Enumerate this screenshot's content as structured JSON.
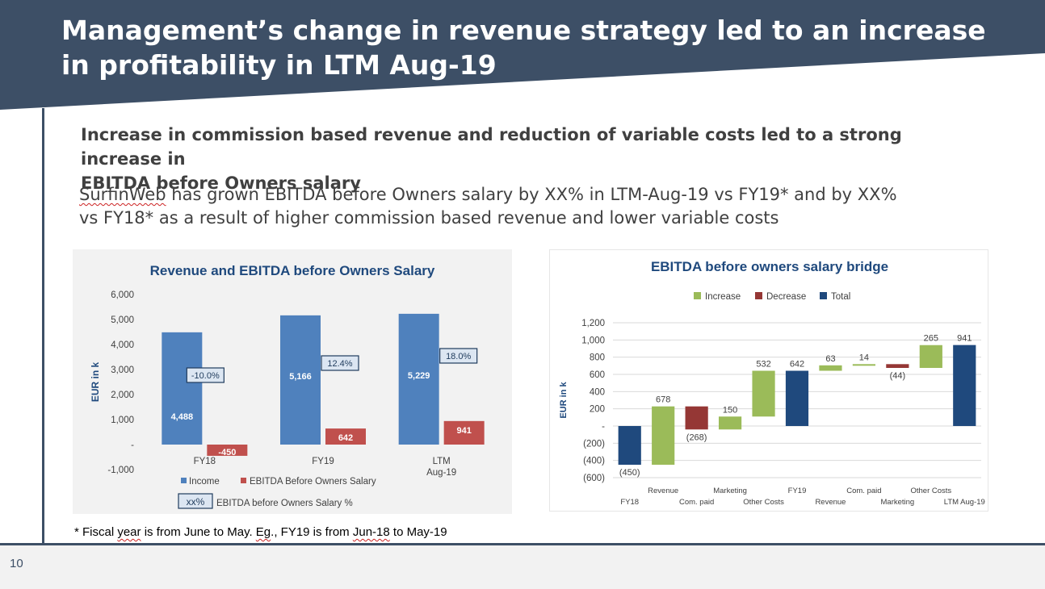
{
  "slide": {
    "title_line1": "Management’s change in revenue strategy led to an increase",
    "title_line2": "in profitability in LTM Aug-19",
    "subtitle_line1": "Increase in commission based revenue and reduction of variable costs led to a strong increase in",
    "subtitle_line2": "EBITDA before Owners salary",
    "body_word": "SurfinWeb",
    "body_line1_rest": " has grown EBITDA before Owners salary by XX% in LTM-Aug-19 vs FY19* and by XX%",
    "body_line2": "vs FY18* as a result of higher commission based revenue and lower variable costs",
    "footnote_pre": "* Fiscal ",
    "footnote_year": "year",
    "footnote_mid1": " is from June to May. ",
    "footnote_eg": "Eg",
    "footnote_mid2": "., FY19 is from ",
    "footnote_jun": "Jun-18",
    "footnote_post": " to May-19",
    "page_number": "10",
    "colors": {
      "navy": "#3d4f66",
      "text": "#404040"
    }
  },
  "chart_data": [
    {
      "type": "bar",
      "title": "Revenue and EBITDA before Owners Salary",
      "ylabel": "EUR in k",
      "ylim": [
        -1000,
        6000
      ],
      "yticks": [
        "6,000",
        "5,000",
        "4,000",
        "3,000",
        "2,000",
        "1,000",
        "-",
        "-1,000"
      ],
      "categories": [
        "FY18",
        "FY19",
        "LTM\nAug-19"
      ],
      "series": [
        {
          "name": "Income",
          "color": "#4f81bd",
          "values": [
            4488,
            5166,
            5229
          ],
          "labels": [
            "4,488",
            "5,166",
            "5,229"
          ]
        },
        {
          "name": "EBITDA Before Owners Salary",
          "color": "#c0504d",
          "values": [
            -450,
            642,
            941
          ],
          "labels": [
            "-450",
            "642",
            "941"
          ]
        }
      ],
      "margin_labels": [
        "-10.0%",
        "12.4%",
        "18.0%"
      ],
      "margin_legend_symbol": "xx%",
      "margin_legend_text": "EBITDA before Owners Salary %",
      "grid": false,
      "legend": "bottom"
    },
    {
      "type": "bar",
      "subtype": "waterfall",
      "title": "EBITDA before owners salary bridge",
      "ylabel": "EUR in k",
      "ylim": [
        -600,
        1200
      ],
      "yticks": [
        "1,200",
        "1,000",
        "800",
        "600",
        "400",
        "200",
        "-",
        "(200)",
        "(400)",
        "(600)"
      ],
      "legend_items": [
        {
          "name": "Increase",
          "color": "#9bbb59"
        },
        {
          "name": "Decrease",
          "color": "#953735"
        },
        {
          "name": "Total",
          "color": "#1f497d"
        }
      ],
      "categories": [
        "FY18",
        "Revenue",
        "Com. paid",
        "Marketing",
        "Other Costs",
        "FY19",
        "Revenue",
        "Com. paid",
        "Marketing",
        "Other Costs",
        "LTM Aug-19"
      ],
      "steps": [
        {
          "kind": "total",
          "value": -450,
          "label": "(450)"
        },
        {
          "kind": "increase",
          "value": 678,
          "label": "678"
        },
        {
          "kind": "decrease",
          "value": -268,
          "label": "(268)"
        },
        {
          "kind": "increase",
          "value": 150,
          "label": "150"
        },
        {
          "kind": "increase",
          "value": 532,
          "label": "532"
        },
        {
          "kind": "total",
          "value": 642,
          "label": "642"
        },
        {
          "kind": "increase",
          "value": 63,
          "label": "63"
        },
        {
          "kind": "increase",
          "value": 14,
          "label": "14"
        },
        {
          "kind": "decrease",
          "value": -44,
          "label": "(44)"
        },
        {
          "kind": "increase",
          "value": 265,
          "label": "265"
        },
        {
          "kind": "total",
          "value": 941,
          "label": "941"
        }
      ],
      "grid": true,
      "legend": "top"
    }
  ]
}
